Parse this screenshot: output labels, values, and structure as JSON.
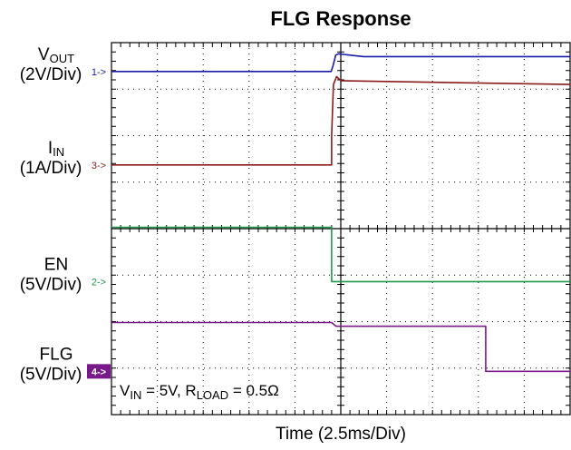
{
  "chart_data": {
    "type": "line",
    "title": "FLG Response",
    "xlabel": "Time (2.5ms/Div)",
    "annotation": {
      "text": "V_IN = 5V, R_LOAD = 0.5Ω",
      "vin_prefix": "V",
      "vin_sub": "IN",
      "vin_value": " = 5V, R",
      "rload_sub": "LOAD",
      "rload_value": " = 0.5Ω"
    },
    "grid": {
      "x_divisions": 10,
      "y_divisions": 8,
      "dotted": true
    },
    "xlim": [
      0,
      10
    ],
    "ylim": [
      0,
      8
    ],
    "series": [
      {
        "channel": "1",
        "marker": "1->",
        "color": "#1a1aa8",
        "label_main": "V",
        "label_sub": "OUT",
        "scale": "(2V/Div)",
        "marker_y": 7.38,
        "x": [
          0,
          4.79,
          4.83,
          4.89,
          4.95,
          5.5,
          10
        ],
        "y": [
          7.38,
          7.38,
          7.5,
          7.73,
          7.76,
          7.7,
          7.7
        ]
      },
      {
        "channel": "3",
        "marker": "3->",
        "color": "#8b1a1a",
        "label_main": "I",
        "label_sub": "IN",
        "scale": "(1A/Div)",
        "marker_y": 5.37,
        "x": [
          0,
          4.8,
          4.8,
          4.84,
          4.91,
          5.0,
          10
        ],
        "y": [
          5.37,
          5.37,
          6.0,
          7.1,
          7.27,
          7.18,
          7.1
        ]
      },
      {
        "channel": "2",
        "marker": "2->",
        "color": "#1e9a4a",
        "label_main": "EN",
        "label_sub": "",
        "scale": "(5V/Div)",
        "marker_y": 2.86,
        "x": [
          0,
          4.8,
          4.8,
          10
        ],
        "y": [
          4.03,
          4.03,
          2.86,
          2.86
        ]
      },
      {
        "channel": "4",
        "marker": "4->",
        "color": "#7a1a8a",
        "label_main": "FLG",
        "label_sub": "",
        "scale": "(5V/Div)",
        "marker_y": 0.93,
        "x": [
          0,
          4.8,
          4.9,
          8.16,
          8.16,
          10
        ],
        "y": [
          1.98,
          1.98,
          1.9,
          1.9,
          0.93,
          0.93
        ]
      }
    ]
  }
}
